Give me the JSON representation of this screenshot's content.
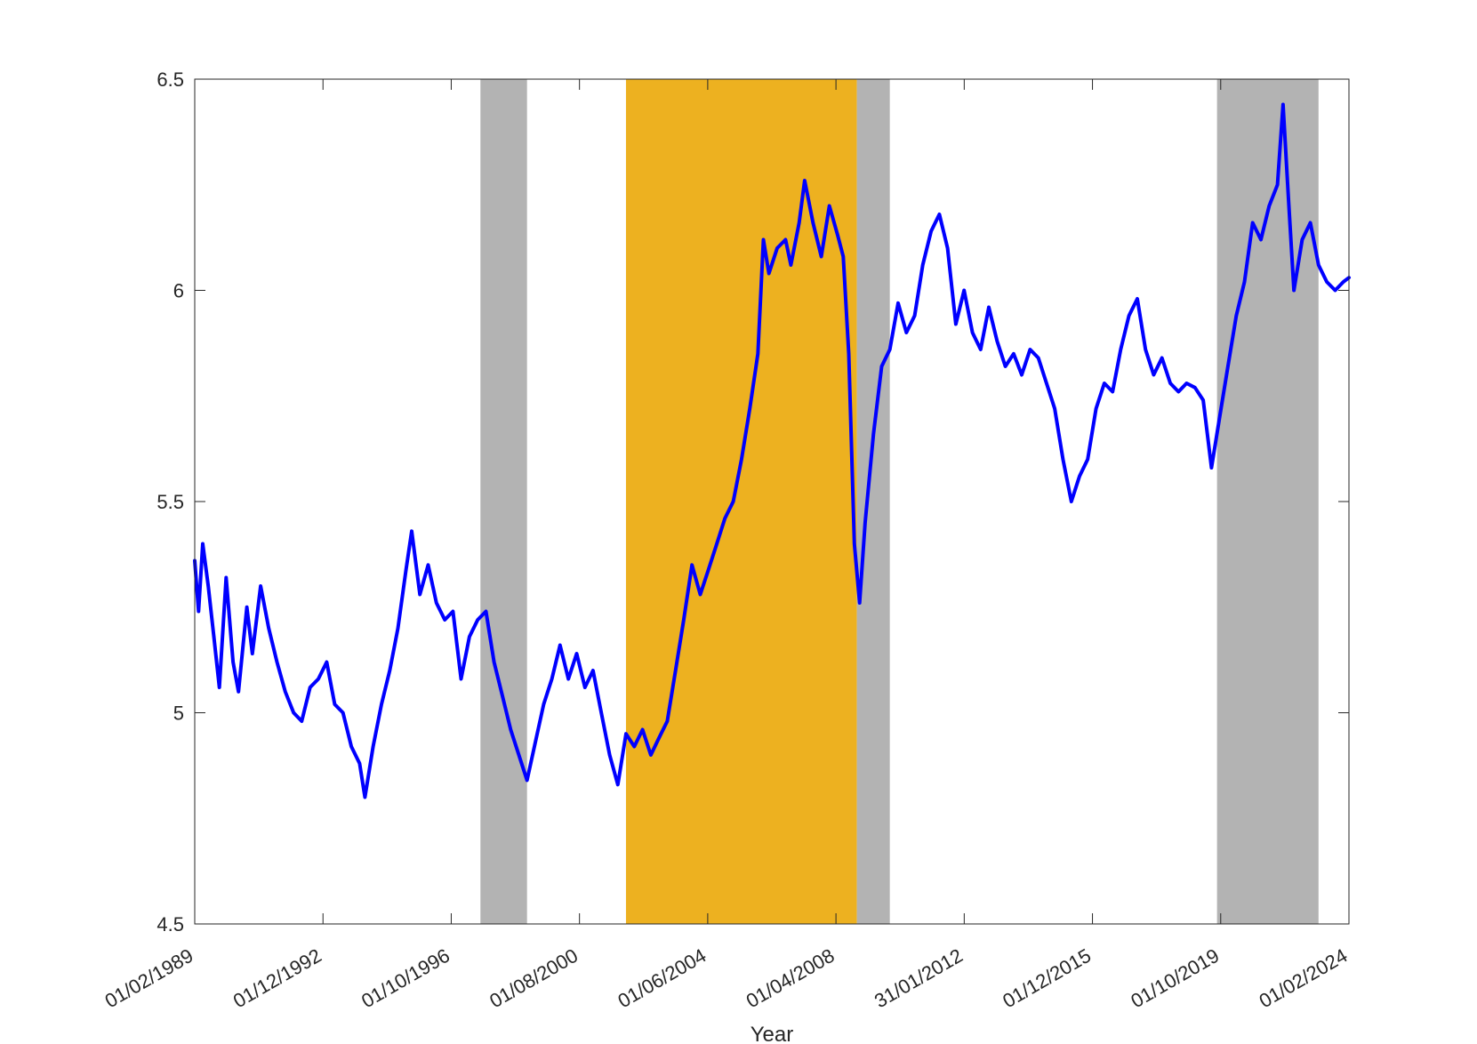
{
  "chart_data": {
    "type": "line",
    "title": "",
    "xlabel": "Year",
    "ylabel": "",
    "x_tick_labels": [
      "01/02/1989",
      "01/12/1992",
      "01/10/1996",
      "01/08/2000",
      "01/06/2004",
      "01/04/2008",
      "31/01/2012",
      "01/12/2015",
      "01/10/2019",
      "01/02/2024"
    ],
    "x_range": [
      "1989-02-01",
      "2024-02-01"
    ],
    "ylim": [
      4.5,
      6.5
    ],
    "y_ticks": [
      4.5,
      5,
      5.5,
      6,
      6.5
    ],
    "y_tick_labels": [
      "4.5",
      "5",
      "5.5",
      "6",
      "6.5"
    ],
    "grid": false,
    "line_color": "#0000ff",
    "shaded_regions": [
      {
        "start": "1997-10-01",
        "end": "1999-03-01",
        "color": "#b3b3b3"
      },
      {
        "start": "2002-03-01",
        "end": "2009-03-01",
        "color": "#edb120"
      },
      {
        "start": "2009-03-01",
        "end": "2010-03-01",
        "color": "#b3b3b3"
      },
      {
        "start": "2020-02-01",
        "end": "2023-03-01",
        "color": "#b3b3b3"
      }
    ],
    "series": [
      {
        "points": [
          [
            "1989-02-01",
            5.36
          ],
          [
            "1989-03-15",
            5.24
          ],
          [
            "1989-05-01",
            5.4
          ],
          [
            "1989-07-01",
            5.3
          ],
          [
            "1989-09-01",
            5.18
          ],
          [
            "1989-11-01",
            5.06
          ],
          [
            "1990-01-15",
            5.32
          ],
          [
            "1990-04-01",
            5.12
          ],
          [
            "1990-06-01",
            5.05
          ],
          [
            "1990-09-01",
            5.25
          ],
          [
            "1990-11-01",
            5.14
          ],
          [
            "1991-02-01",
            5.3
          ],
          [
            "1991-05-01",
            5.2
          ],
          [
            "1991-08-01",
            5.12
          ],
          [
            "1991-11-01",
            5.05
          ],
          [
            "1992-02-01",
            5.0
          ],
          [
            "1992-05-01",
            4.98
          ],
          [
            "1992-08-01",
            5.06
          ],
          [
            "1992-11-01",
            5.08
          ],
          [
            "1993-02-01",
            5.12
          ],
          [
            "1993-05-01",
            5.02
          ],
          [
            "1993-08-01",
            5.0
          ],
          [
            "1993-11-01",
            4.92
          ],
          [
            "1994-02-01",
            4.88
          ],
          [
            "1994-04-01",
            4.8
          ],
          [
            "1994-07-01",
            4.92
          ],
          [
            "1994-10-01",
            5.02
          ],
          [
            "1995-01-01",
            5.1
          ],
          [
            "1995-04-01",
            5.2
          ],
          [
            "1995-07-01",
            5.34
          ],
          [
            "1995-09-01",
            5.43
          ],
          [
            "1995-12-01",
            5.28
          ],
          [
            "1996-03-01",
            5.35
          ],
          [
            "1996-06-01",
            5.26
          ],
          [
            "1996-09-01",
            5.22
          ],
          [
            "1996-12-01",
            5.24
          ],
          [
            "1997-03-01",
            5.08
          ],
          [
            "1997-06-01",
            5.18
          ],
          [
            "1997-09-01",
            5.22
          ],
          [
            "1997-12-01",
            5.24
          ],
          [
            "1998-03-01",
            5.12
          ],
          [
            "1998-06-01",
            5.04
          ],
          [
            "1998-09-01",
            4.96
          ],
          [
            "1998-12-01",
            4.9
          ],
          [
            "1999-03-01",
            4.84
          ],
          [
            "1999-06-01",
            4.93
          ],
          [
            "1999-09-01",
            5.02
          ],
          [
            "1999-12-01",
            5.08
          ],
          [
            "2000-03-01",
            5.16
          ],
          [
            "2000-06-01",
            5.08
          ],
          [
            "2000-09-01",
            5.14
          ],
          [
            "2000-12-01",
            5.06
          ],
          [
            "2001-03-01",
            5.1
          ],
          [
            "2001-06-01",
            5.0
          ],
          [
            "2001-09-01",
            4.9
          ],
          [
            "2001-12-01",
            4.83
          ],
          [
            "2002-03-01",
            4.95
          ],
          [
            "2002-06-01",
            4.92
          ],
          [
            "2002-09-01",
            4.96
          ],
          [
            "2002-12-01",
            4.9
          ],
          [
            "2003-03-01",
            4.94
          ],
          [
            "2003-06-01",
            4.98
          ],
          [
            "2003-09-01",
            5.1
          ],
          [
            "2003-12-01",
            5.22
          ],
          [
            "2004-03-01",
            5.35
          ],
          [
            "2004-06-01",
            5.28
          ],
          [
            "2004-09-01",
            5.34
          ],
          [
            "2004-12-01",
            5.4
          ],
          [
            "2005-03-01",
            5.46
          ],
          [
            "2005-06-01",
            5.5
          ],
          [
            "2005-09-01",
            5.6
          ],
          [
            "2005-12-01",
            5.72
          ],
          [
            "2006-03-01",
            5.85
          ],
          [
            "2006-05-01",
            6.12
          ],
          [
            "2006-07-01",
            6.04
          ],
          [
            "2006-10-01",
            6.1
          ],
          [
            "2007-01-01",
            6.12
          ],
          [
            "2007-03-01",
            6.06
          ],
          [
            "2007-06-01",
            6.16
          ],
          [
            "2007-08-01",
            6.26
          ],
          [
            "2007-11-01",
            6.16
          ],
          [
            "2008-02-01",
            6.08
          ],
          [
            "2008-05-01",
            6.2
          ],
          [
            "2008-08-01",
            6.13
          ],
          [
            "2008-10-01",
            6.08
          ],
          [
            "2008-12-01",
            5.85
          ],
          [
            "2009-02-01",
            5.4
          ],
          [
            "2009-04-01",
            5.26
          ],
          [
            "2009-06-01",
            5.45
          ],
          [
            "2009-09-01",
            5.66
          ],
          [
            "2009-12-01",
            5.82
          ],
          [
            "2010-03-01",
            5.86
          ],
          [
            "2010-06-01",
            5.97
          ],
          [
            "2010-09-01",
            5.9
          ],
          [
            "2010-12-01",
            5.94
          ],
          [
            "2011-03-01",
            6.06
          ],
          [
            "2011-06-01",
            6.14
          ],
          [
            "2011-09-01",
            6.18
          ],
          [
            "2011-12-01",
            6.1
          ],
          [
            "2012-03-01",
            5.92
          ],
          [
            "2012-06-01",
            6.0
          ],
          [
            "2012-09-01",
            5.9
          ],
          [
            "2012-12-01",
            5.86
          ],
          [
            "2013-03-01",
            5.96
          ],
          [
            "2013-06-01",
            5.88
          ],
          [
            "2013-09-01",
            5.82
          ],
          [
            "2013-12-01",
            5.85
          ],
          [
            "2014-03-01",
            5.8
          ],
          [
            "2014-06-01",
            5.86
          ],
          [
            "2014-09-01",
            5.84
          ],
          [
            "2014-12-01",
            5.78
          ],
          [
            "2015-03-01",
            5.72
          ],
          [
            "2015-06-01",
            5.6
          ],
          [
            "2015-09-01",
            5.5
          ],
          [
            "2015-12-01",
            5.56
          ],
          [
            "2016-03-01",
            5.6
          ],
          [
            "2016-06-01",
            5.72
          ],
          [
            "2016-09-01",
            5.78
          ],
          [
            "2016-12-01",
            5.76
          ],
          [
            "2017-03-01",
            5.86
          ],
          [
            "2017-06-01",
            5.94
          ],
          [
            "2017-09-01",
            5.98
          ],
          [
            "2017-12-01",
            5.86
          ],
          [
            "2018-03-01",
            5.8
          ],
          [
            "2018-06-01",
            5.84
          ],
          [
            "2018-09-01",
            5.78
          ],
          [
            "2018-12-01",
            5.76
          ],
          [
            "2019-03-01",
            5.78
          ],
          [
            "2019-06-01",
            5.77
          ],
          [
            "2019-09-01",
            5.74
          ],
          [
            "2019-12-01",
            5.58
          ],
          [
            "2020-03-01",
            5.7
          ],
          [
            "2020-06-01",
            5.82
          ],
          [
            "2020-09-01",
            5.94
          ],
          [
            "2020-12-01",
            6.02
          ],
          [
            "2021-03-01",
            6.16
          ],
          [
            "2021-06-01",
            6.12
          ],
          [
            "2021-09-01",
            6.2
          ],
          [
            "2021-12-01",
            6.25
          ],
          [
            "2022-02-01",
            6.44
          ],
          [
            "2022-04-01",
            6.22
          ],
          [
            "2022-06-01",
            6.0
          ],
          [
            "2022-09-01",
            6.12
          ],
          [
            "2022-12-01",
            6.16
          ],
          [
            "2023-03-01",
            6.06
          ],
          [
            "2023-06-01",
            6.02
          ],
          [
            "2023-09-01",
            6.0
          ],
          [
            "2023-12-01",
            6.02
          ],
          [
            "2024-02-01",
            6.03
          ]
        ]
      }
    ]
  }
}
